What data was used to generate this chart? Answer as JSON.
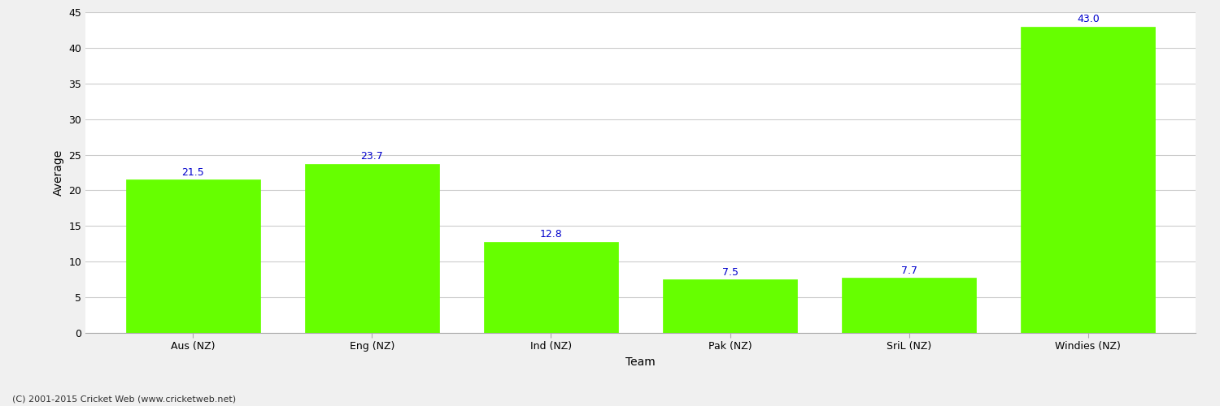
{
  "categories": [
    "Aus (NZ)",
    "Eng (NZ)",
    "Ind (NZ)",
    "Pak (NZ)",
    "SriL (NZ)",
    "Windies (NZ)"
  ],
  "values": [
    21.5,
    23.7,
    12.8,
    7.5,
    7.7,
    43.0
  ],
  "bar_color": "#66ff00",
  "bar_edge_color": "#66ff00",
  "label_color": "#0000cc",
  "label_fontsize": 9,
  "xlabel": "Team",
  "ylabel": "Average",
  "ylim": [
    0,
    45
  ],
  "yticks": [
    0,
    5,
    10,
    15,
    20,
    25,
    30,
    35,
    40,
    45
  ],
  "grid_color": "#cccccc",
  "background_color": "#f0f0f0",
  "plot_bg_color": "#ffffff",
  "xlabel_fontsize": 10,
  "ylabel_fontsize": 10,
  "tick_fontsize": 9,
  "footer": "(C) 2001-2015 Cricket Web (www.cricketweb.net)",
  "footer_fontsize": 8,
  "bar_width": 0.75
}
